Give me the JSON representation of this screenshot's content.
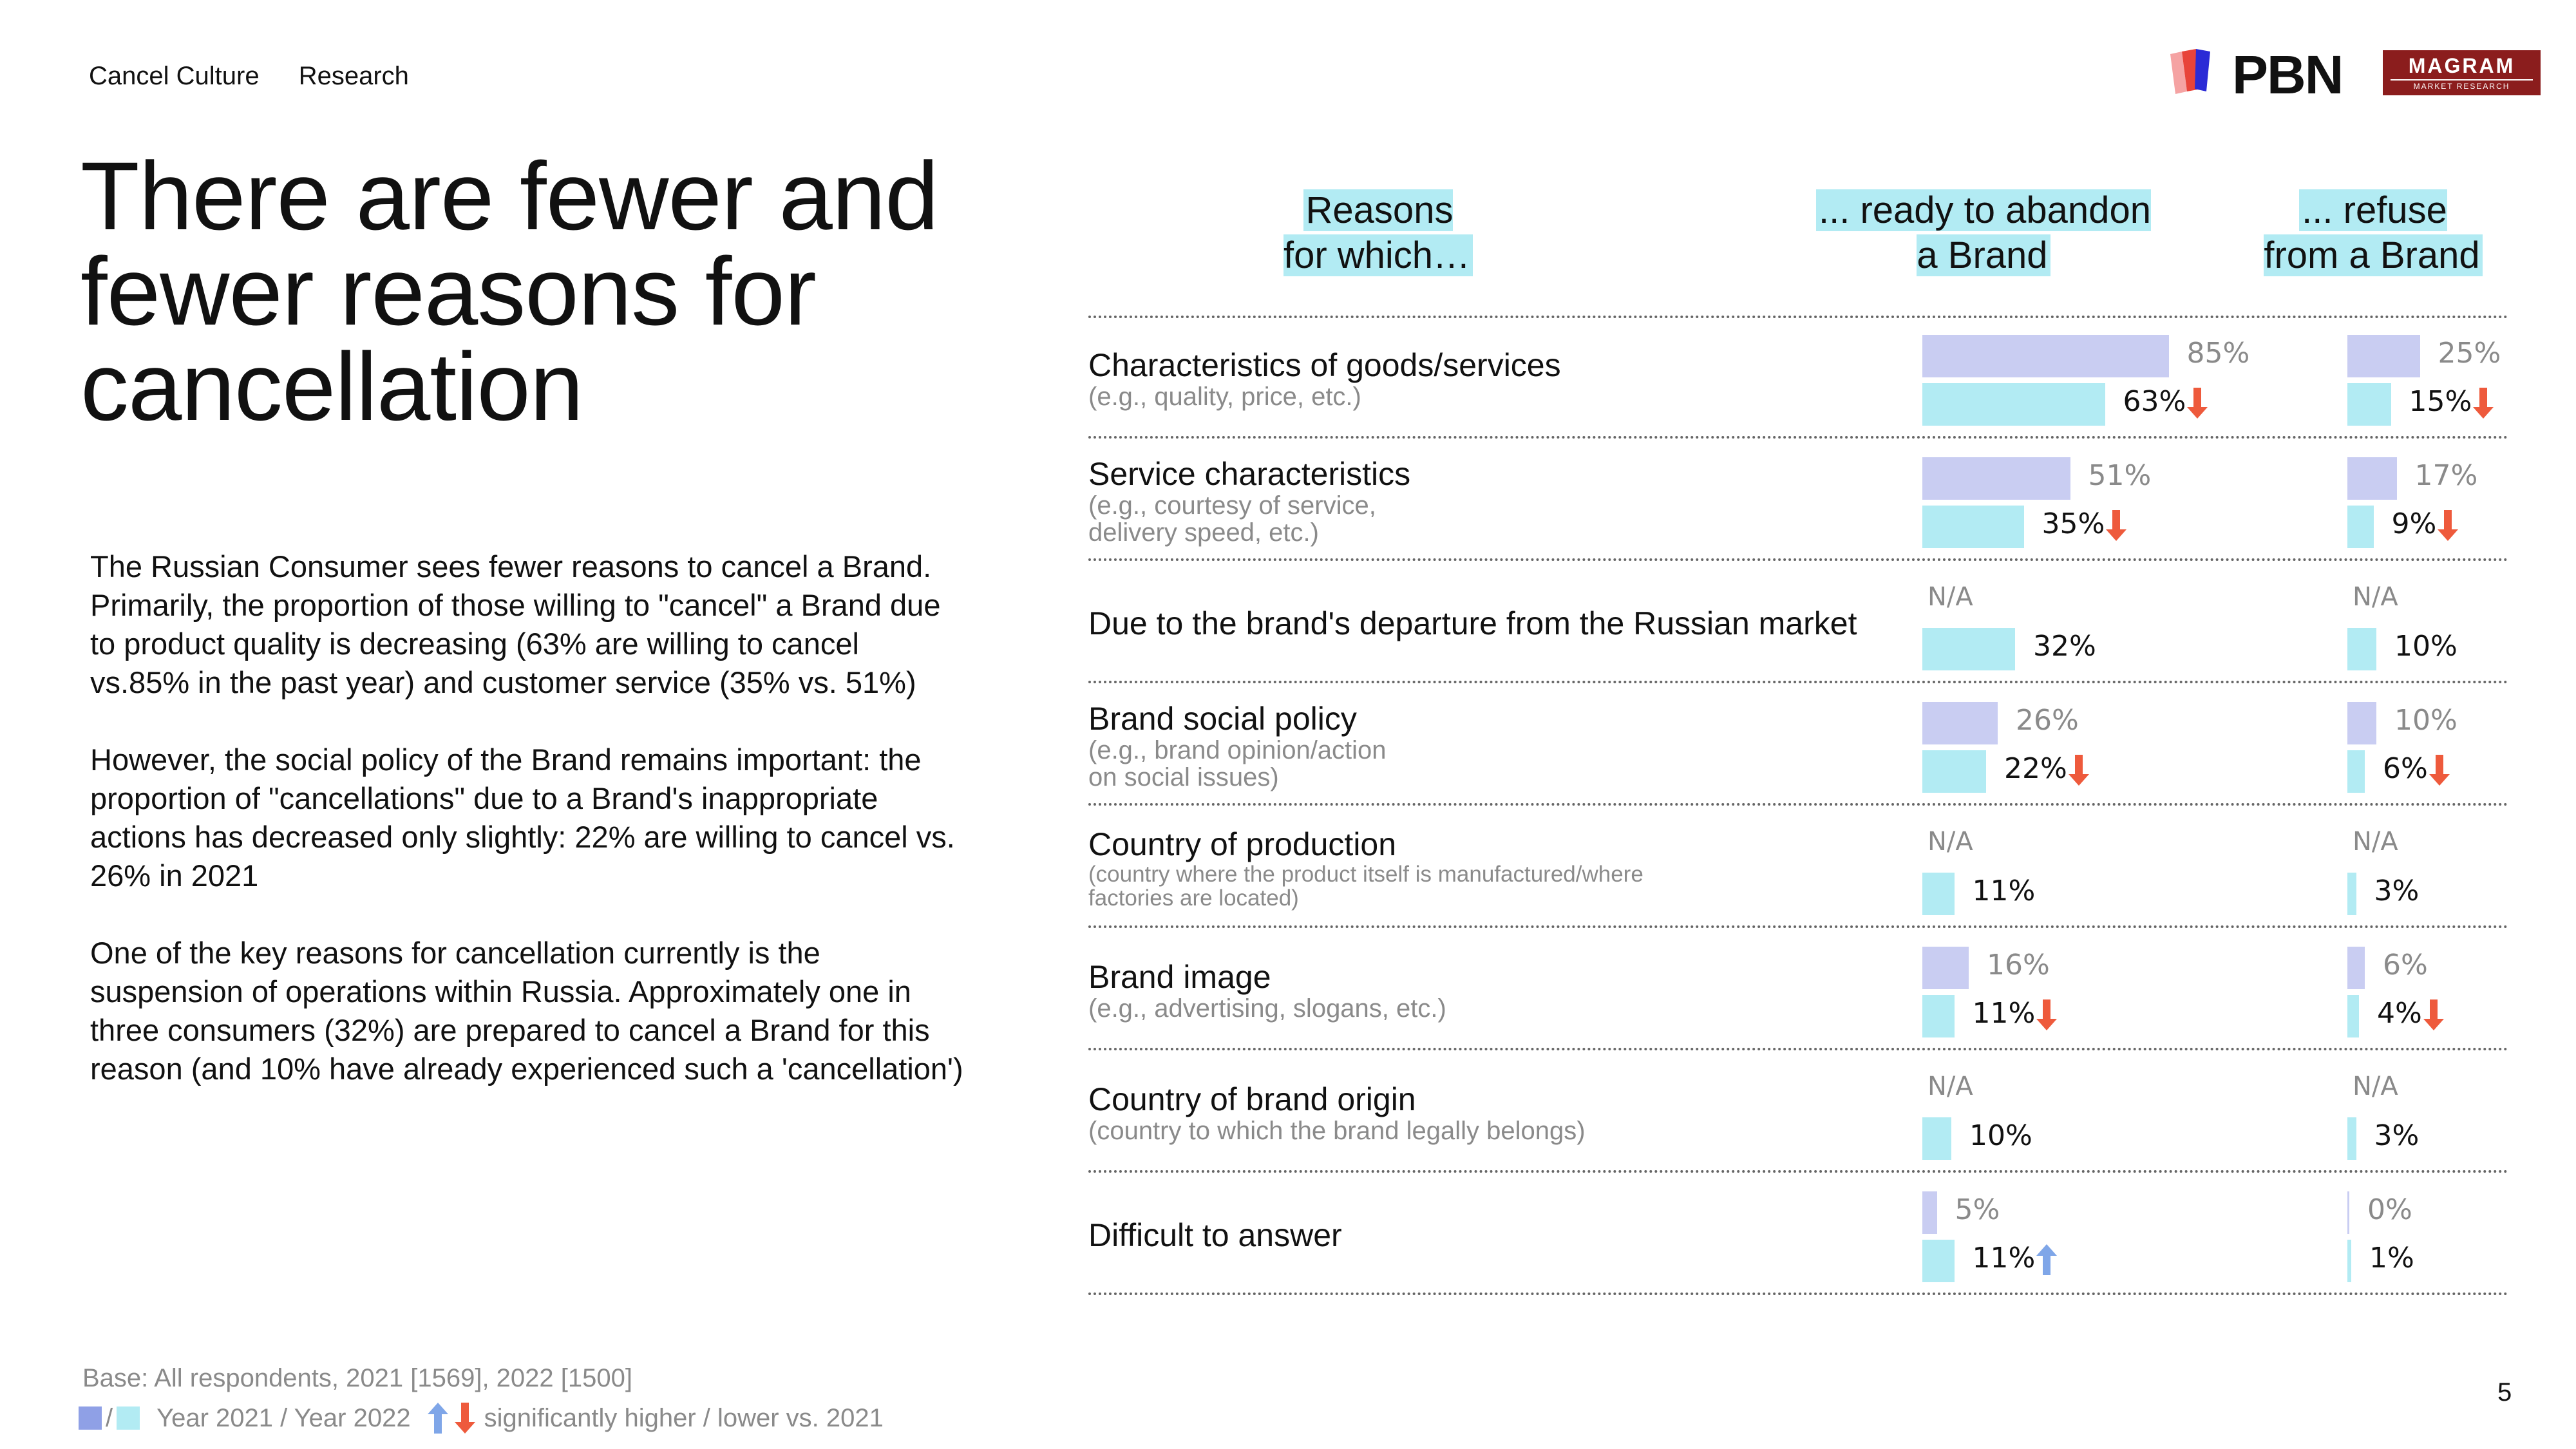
{
  "header": {
    "nav": [
      "Cancel Culture",
      "Research"
    ],
    "logo_pbn": "PBN",
    "logo_magram": "MAGRAM",
    "logo_magram_sub": "MARKET RESEARCH"
  },
  "title": "There are fewer and fewer reasons for cancellation",
  "body": [
    "The Russian Consumer sees fewer reasons to cancel a Brand. Primarily, the proportion of those willing to \"cancel\" a Brand due to product quality is decreasing (63% are willing to cancel vs.85% in the past year) and customer service (35% vs. 51%)",
    "However, the social policy of the Brand remains important: the proportion of \"cancellations\" due to a Brand's inappropriate actions has decreased only slightly: 22% are willing to cancel vs. 26% in 2021",
    "One of the key reasons for cancellation currently is the suspension of operations within Russia. Approximately one in three consumers (32%) are prepared to cancel a Brand for this reason (and 10% have already experienced such a 'cancellation')"
  ],
  "footer": {
    "base": "Base: All respondents, 2021 [1569], 2022 [1500]",
    "legend_years": "Year 2021 / Year 2022",
    "legend_sig": "significantly higher / lower vs. 2021",
    "page_number": "5"
  },
  "colors": {
    "year_2021": "#c9cdf2",
    "year_2022": "#b2ebf3",
    "down": "#ee5a3c",
    "up": "#7fa6e8"
  },
  "chart_data": {
    "type": "bar",
    "column_headers": {
      "reasons": "Reasons\nfor which…",
      "abandon": "... ready to abandon\na Brand",
      "refuse": "... refuse\nfrom a Brand"
    },
    "na_label": "N/A",
    "series_names": [
      "Year 2021",
      "Year 2022"
    ],
    "unit": "%",
    "categories": [
      {
        "label": "Characteristics of goods/services",
        "sub": "(e.g., quality, price, etc.)",
        "abandon": [
          85,
          63
        ],
        "refuse": [
          25,
          15
        ],
        "abandon_sig": "down",
        "refuse_sig": "down"
      },
      {
        "label": "Service characteristics",
        "sub": "(e.g., courtesy of service,\ndelivery speed, etc.)",
        "abandon": [
          51,
          35
        ],
        "refuse": [
          17,
          9
        ],
        "abandon_sig": "down",
        "refuse_sig": "down"
      },
      {
        "label": "Due to the brand's departure from the Russian market",
        "sub": "",
        "abandon": [
          null,
          32
        ],
        "refuse": [
          null,
          10
        ],
        "abandon_sig": "",
        "refuse_sig": ""
      },
      {
        "label": "Brand social policy",
        "sub": "(e.g., brand opinion/action\non social issues)",
        "abandon": [
          26,
          22
        ],
        "refuse": [
          10,
          6
        ],
        "abandon_sig": "down",
        "refuse_sig": "down"
      },
      {
        "label": "Country of production",
        "sub": "(country where the product itself is manufactured/where\nfactories are located)",
        "abandon": [
          null,
          11
        ],
        "refuse": [
          null,
          3
        ],
        "abandon_sig": "",
        "refuse_sig": ""
      },
      {
        "label": "Brand image",
        "sub": "(e.g., advertising, slogans, etc.)",
        "abandon": [
          16,
          11
        ],
        "refuse": [
          6,
          4
        ],
        "abandon_sig": "down",
        "refuse_sig": "down"
      },
      {
        "label": "Country of brand origin",
        "sub": "(country to which the brand legally belongs)",
        "abandon": [
          null,
          10
        ],
        "refuse": [
          null,
          3
        ],
        "abandon_sig": "",
        "refuse_sig": ""
      },
      {
        "label": "Difficult to answer",
        "sub": "",
        "abandon": [
          5,
          11
        ],
        "refuse": [
          0,
          1
        ],
        "abandon_sig": "up",
        "refuse_sig": ""
      }
    ]
  }
}
